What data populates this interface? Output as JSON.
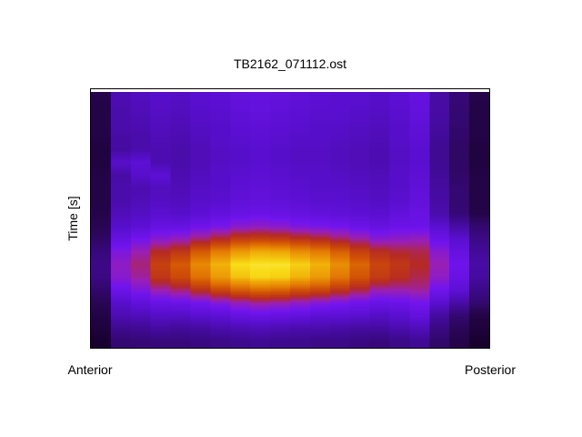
{
  "title": "TB2162_071112.ost",
  "axes": {
    "y_label": "Time [s]",
    "x_left_label": "Anterior",
    "x_right_label": "Posterior"
  },
  "colors": {
    "page_background": "#ffffff",
    "plot_frame": "#000000",
    "top_edge_row": "#ffffff"
  },
  "chart_data": {
    "type": "heatmap",
    "title": "TB2162_071112.ost",
    "ylabel": "Time [s]",
    "xlabel": "",
    "x_tick_labels": [
      "Anterior",
      "Posterior"
    ],
    "grid_cols": 20,
    "grid_rows": 20,
    "legend": "none",
    "grid": false,
    "layout": {
      "interpolation": "nearest-x-smooth-y",
      "orientation": "anterior-left-posterior-right",
      "top_edge_row_color": "#ffffff"
    },
    "colormap_stops": [
      [
        0.0,
        "#000000"
      ],
      [
        0.1,
        "#16002a"
      ],
      [
        0.2,
        "#2b0658"
      ],
      [
        0.3,
        "#400a93"
      ],
      [
        0.4,
        "#5a0fd0"
      ],
      [
        0.48,
        "#7114ee"
      ],
      [
        0.55,
        "#9a1fb4"
      ],
      [
        0.62,
        "#b62a22"
      ],
      [
        0.7,
        "#cf4e06"
      ],
      [
        0.78,
        "#e47d04"
      ],
      [
        0.86,
        "#f0ab08"
      ],
      [
        0.93,
        "#f8dd18"
      ],
      [
        1.0,
        "#ffffc8"
      ]
    ],
    "values": [
      [
        0.17,
        0.35,
        0.37,
        0.39,
        0.38,
        0.4,
        0.41,
        0.43,
        0.44,
        0.43,
        0.42,
        0.41,
        0.4,
        0.4,
        0.39,
        0.41,
        0.44,
        0.33,
        0.25,
        0.17
      ],
      [
        0.16,
        0.34,
        0.36,
        0.38,
        0.37,
        0.39,
        0.4,
        0.42,
        0.43,
        0.42,
        0.41,
        0.4,
        0.4,
        0.39,
        0.38,
        0.4,
        0.43,
        0.33,
        0.24,
        0.16
      ],
      [
        0.16,
        0.34,
        0.35,
        0.37,
        0.36,
        0.38,
        0.39,
        0.41,
        0.42,
        0.41,
        0.4,
        0.39,
        0.39,
        0.38,
        0.37,
        0.39,
        0.42,
        0.32,
        0.24,
        0.16
      ],
      [
        0.16,
        0.33,
        0.34,
        0.36,
        0.35,
        0.37,
        0.39,
        0.4,
        0.41,
        0.4,
        0.39,
        0.39,
        0.38,
        0.37,
        0.36,
        0.39,
        0.41,
        0.31,
        0.23,
        0.16
      ],
      [
        0.15,
        0.32,
        0.34,
        0.35,
        0.34,
        0.36,
        0.38,
        0.39,
        0.4,
        0.39,
        0.38,
        0.38,
        0.37,
        0.36,
        0.35,
        0.38,
        0.4,
        0.3,
        0.22,
        0.15
      ],
      [
        0.15,
        0.39,
        0.41,
        0.35,
        0.34,
        0.36,
        0.38,
        0.39,
        0.4,
        0.39,
        0.38,
        0.38,
        0.37,
        0.36,
        0.35,
        0.38,
        0.4,
        0.3,
        0.22,
        0.15
      ],
      [
        0.16,
        0.33,
        0.39,
        0.41,
        0.35,
        0.37,
        0.39,
        0.4,
        0.41,
        0.4,
        0.39,
        0.39,
        0.38,
        0.37,
        0.36,
        0.39,
        0.41,
        0.31,
        0.23,
        0.16
      ],
      [
        0.16,
        0.34,
        0.35,
        0.37,
        0.36,
        0.38,
        0.39,
        0.41,
        0.42,
        0.41,
        0.4,
        0.39,
        0.39,
        0.38,
        0.37,
        0.39,
        0.42,
        0.32,
        0.24,
        0.16
      ],
      [
        0.16,
        0.34,
        0.36,
        0.38,
        0.37,
        0.39,
        0.4,
        0.42,
        0.43,
        0.42,
        0.41,
        0.4,
        0.4,
        0.39,
        0.38,
        0.4,
        0.43,
        0.33,
        0.24,
        0.16
      ],
      [
        0.17,
        0.36,
        0.38,
        0.4,
        0.39,
        0.41,
        0.43,
        0.45,
        0.46,
        0.45,
        0.44,
        0.43,
        0.42,
        0.41,
        0.4,
        0.43,
        0.45,
        0.34,
        0.25,
        0.17
      ],
      [
        0.19,
        0.39,
        0.41,
        0.44,
        0.44,
        0.47,
        0.49,
        0.52,
        0.53,
        0.52,
        0.5,
        0.49,
        0.48,
        0.46,
        0.44,
        0.46,
        0.46,
        0.4,
        0.33,
        0.24
      ],
      [
        0.22,
        0.44,
        0.48,
        0.52,
        0.54,
        0.58,
        0.62,
        0.66,
        0.67,
        0.66,
        0.64,
        0.62,
        0.59,
        0.56,
        0.52,
        0.53,
        0.54,
        0.46,
        0.4,
        0.28
      ],
      [
        0.26,
        0.5,
        0.55,
        0.62,
        0.65,
        0.72,
        0.78,
        0.83,
        0.86,
        0.85,
        0.81,
        0.78,
        0.73,
        0.67,
        0.63,
        0.61,
        0.6,
        0.52,
        0.44,
        0.31
      ],
      [
        0.28,
        0.53,
        0.58,
        0.67,
        0.72,
        0.8,
        0.87,
        0.93,
        0.94,
        0.94,
        0.91,
        0.87,
        0.81,
        0.74,
        0.68,
        0.65,
        0.62,
        0.55,
        0.47,
        0.33
      ],
      [
        0.27,
        0.52,
        0.56,
        0.65,
        0.69,
        0.76,
        0.83,
        0.89,
        0.92,
        0.91,
        0.87,
        0.83,
        0.77,
        0.71,
        0.66,
        0.63,
        0.6,
        0.53,
        0.45,
        0.32
      ],
      [
        0.23,
        0.46,
        0.5,
        0.55,
        0.58,
        0.63,
        0.68,
        0.72,
        0.74,
        0.73,
        0.7,
        0.68,
        0.64,
        0.6,
        0.55,
        0.55,
        0.56,
        0.47,
        0.41,
        0.28
      ],
      [
        0.19,
        0.39,
        0.42,
        0.45,
        0.46,
        0.48,
        0.51,
        0.54,
        0.56,
        0.55,
        0.53,
        0.51,
        0.49,
        0.47,
        0.45,
        0.46,
        0.48,
        0.4,
        0.33,
        0.24
      ],
      [
        0.16,
        0.35,
        0.36,
        0.38,
        0.38,
        0.4,
        0.41,
        0.44,
        0.45,
        0.44,
        0.43,
        0.41,
        0.41,
        0.4,
        0.38,
        0.4,
        0.43,
        0.32,
        0.24,
        0.16
      ],
      [
        0.14,
        0.29,
        0.3,
        0.32,
        0.31,
        0.32,
        0.34,
        0.35,
        0.36,
        0.35,
        0.34,
        0.34,
        0.33,
        0.32,
        0.32,
        0.34,
        0.36,
        0.27,
        0.2,
        0.14
      ],
      [
        0.11,
        0.24,
        0.25,
        0.26,
        0.26,
        0.27,
        0.28,
        0.29,
        0.3,
        0.29,
        0.29,
        0.28,
        0.28,
        0.27,
        0.26,
        0.28,
        0.3,
        0.23,
        0.17,
        0.11
      ]
    ]
  }
}
